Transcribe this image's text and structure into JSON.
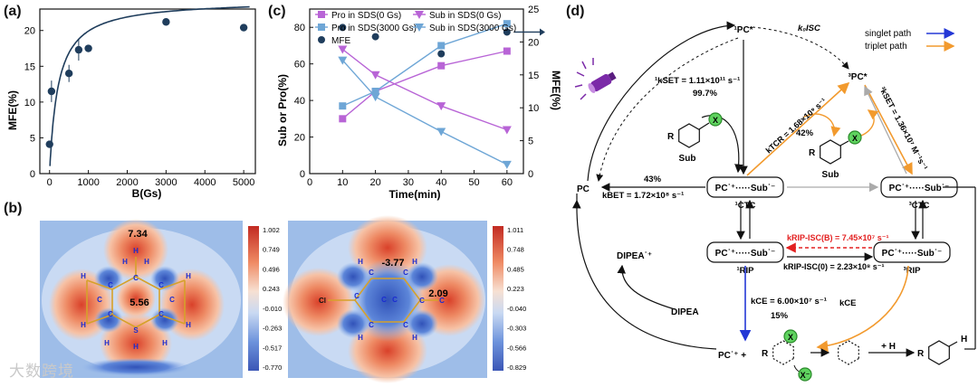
{
  "panel_labels": {
    "a": "(a)",
    "b": "(b)",
    "c": "(c)",
    "d": "(d)"
  },
  "watermark": "大数跨境",
  "chart_data": [
    {
      "id": "a",
      "type": "scatter",
      "title": "",
      "xlabel": "B(Gs)",
      "ylabel": "MFE(%)",
      "xlim": [
        -250,
        5300
      ],
      "ylim": [
        0,
        23
      ],
      "xticks": [
        0,
        1000,
        2000,
        3000,
        4000,
        5000
      ],
      "yticks": [
        0,
        5,
        10,
        15,
        20
      ],
      "x": [
        0,
        50,
        500,
        750,
        1000,
        3000,
        5000
      ],
      "values": [
        4.1,
        11.5,
        14.0,
        17.3,
        17.5,
        21.2,
        20.4
      ],
      "errors": [
        0,
        1.5,
        1.2,
        1.5,
        0,
        0,
        0
      ],
      "fit": {
        "a": 24.3,
        "k": 220
      }
    },
    {
      "id": "c",
      "type": "line",
      "xlabel": "Time(min)",
      "ylabel": "Sub or Pro(%)",
      "y2label": "MFE(%)",
      "xlim": [
        0,
        65
      ],
      "ylim": [
        0,
        90
      ],
      "y2lim": [
        0,
        25
      ],
      "xticks": [
        0,
        10,
        20,
        30,
        40,
        50,
        60
      ],
      "yticks": [
        0,
        20,
        40,
        60,
        80
      ],
      "y2ticks": [
        0,
        5,
        10,
        15,
        20,
        25
      ],
      "x": [
        10,
        20,
        40,
        60
      ],
      "series": [
        {
          "name": "Pro in SDS(0 Gs)",
          "color": "#b864d6",
          "marker": "square",
          "values": [
            30,
            45,
            59,
            67
          ]
        },
        {
          "name": "Pro in SDS(3000 Gs)",
          "color": "#6ea6d6",
          "marker": "square",
          "values": [
            37,
            45,
            70,
            82
          ]
        },
        {
          "name": "Sub in SDS(0 Gs)",
          "color": "#b864d6",
          "marker": "tri-down",
          "values": [
            68,
            54,
            37,
            24
          ]
        },
        {
          "name": "Sub in SDS(3000 Gs)",
          "color": "#6ea6d6",
          "marker": "tri-down",
          "values": [
            62,
            42,
            23,
            5
          ]
        },
        {
          "name": "MFE",
          "color": "#1f3d5c",
          "marker": "circle",
          "axis": "right",
          "values": [
            22.2,
            20.8,
            18.2,
            21.5
          ]
        }
      ]
    }
  ],
  "colorbar_left": [
    "1.002",
    "0.749",
    "0.496",
    "0.243",
    "-0.010",
    "-0.263",
    "-0.517",
    "-0.770"
  ],
  "colorbar_right": [
    "1.011",
    "0.748",
    "0.485",
    "0.223",
    "-0.040",
    "-0.303",
    "-0.566",
    "-0.829"
  ],
  "esp_values": {
    "left_top": "7.34",
    "left_center": "5.56",
    "right_top": "-3.77",
    "right_side": "2.09"
  },
  "atoms": {
    "H": "H",
    "C": "C",
    "S": "S",
    "Cl": "Cl"
  },
  "scheme": {
    "legend": {
      "singlet": "singlet path",
      "triplet": "triplet path"
    },
    "species": {
      "pc1": "¹PC*",
      "pc3": "³PC*",
      "pc": "PC",
      "ctc1_top": "PC˙⁺·····Sub˙⁻",
      "ctc1_label": "¹CTC",
      "ctc3_top": "PC˙⁺·····Sub˙⁻",
      "ctc3_label": "³CTC",
      "rip1_top": "PC˙⁺·····Sub˙⁻",
      "rip1_label": "¹RIP",
      "rip3_top": "PC˙⁺·····Sub˙⁻",
      "rip3_label": "³RIP",
      "dipea_plus": "DIPEA˙⁺",
      "dipea": "DIPEA",
      "sub": "Sub",
      "pc_plus": "PC˙⁺ +",
      "x_minus": "X⁻",
      "plus_h": "+ H",
      "R": "R",
      "X": "X",
      "H": "H"
    },
    "rates": {
      "kisc": "k₀ISC",
      "kset1": "¹kSET = 1.11×10¹¹ s⁻¹",
      "kset1_pct": "99.7%",
      "ktcr": "kTCR = 1.68×10⁹ s⁻¹",
      "ktcr_pct": "42%",
      "kset3": "³kSET = 1.36×10⁷ M⁻¹s⁻¹",
      "kbet_pct": "43%",
      "kbet": "kBET = 1.72×10⁸ s⁻¹",
      "krip_b": "kRIP-ISC(B) = 7.45×10⁷ s⁻¹",
      "krip_0": "kRIP-ISC(0) = 2.23×10⁸ s⁻¹",
      "kce1": "kCE = 6.00×10⁷ s⁻¹",
      "kce1_pct": "15%",
      "kce3": "kCE"
    }
  }
}
